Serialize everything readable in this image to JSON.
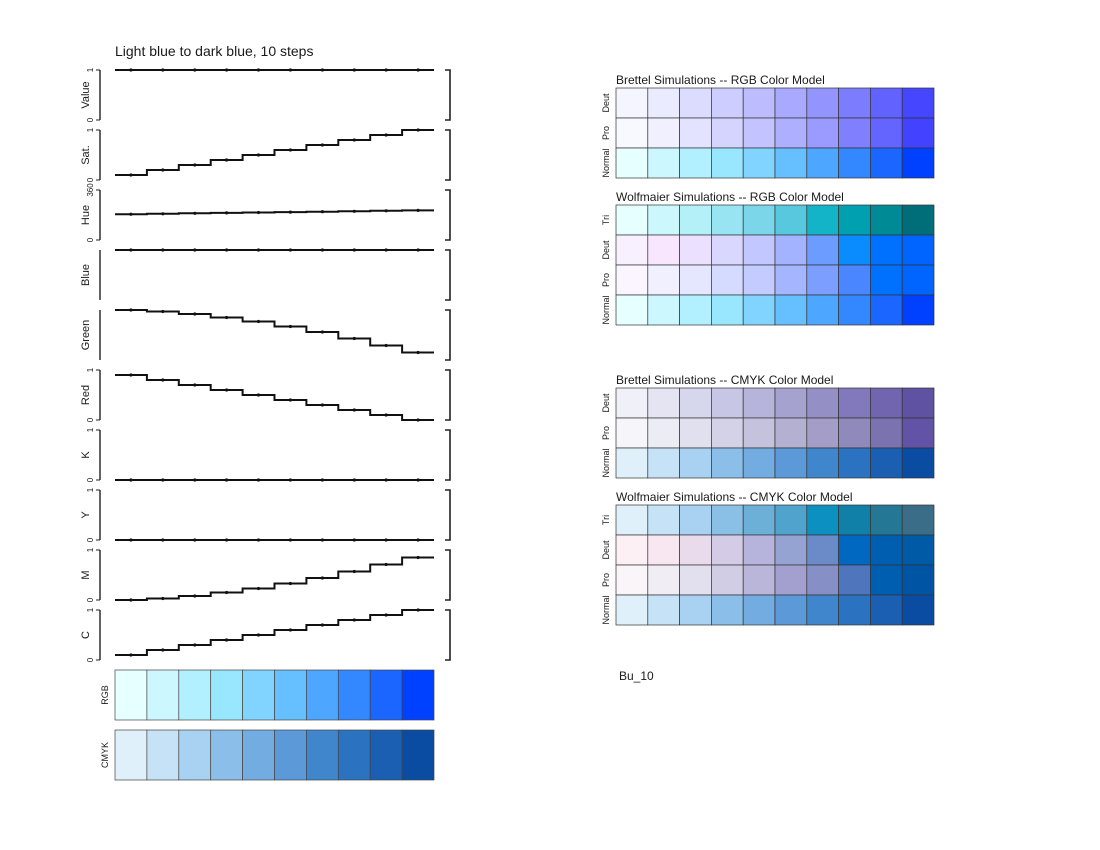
{
  "figure": {
    "title": "Light blue to dark blue, 10 steps",
    "palette_name": "Bu_10"
  },
  "chart_data": {
    "type": "step",
    "steps": 10,
    "component_panels": [
      {
        "key": "value",
        "label": "Value",
        "tick_labels": [
          "0",
          "1"
        ],
        "ylim": [
          0,
          1
        ],
        "values": [
          1,
          1,
          1,
          1,
          1,
          1,
          1,
          1,
          1,
          1
        ]
      },
      {
        "key": "sat",
        "label": "Sat.",
        "tick_labels": [
          "0",
          "1"
        ],
        "ylim": [
          0,
          1
        ],
        "values": [
          0.1,
          0.2,
          0.3,
          0.4,
          0.5,
          0.6,
          0.7,
          0.8,
          0.9,
          1.0
        ]
      },
      {
        "key": "hue",
        "label": "Hue",
        "tick_labels": [
          "0",
          "360"
        ],
        "ylim": [
          0,
          360
        ],
        "values": [
          186,
          189,
          192,
          195,
          198,
          201,
          204,
          207,
          210,
          213
        ]
      },
      {
        "key": "blue",
        "label": "Blue",
        "tick_labels": [],
        "ylim": [
          0,
          1
        ],
        "values": [
          1,
          1,
          1,
          1,
          1,
          1,
          1,
          1,
          1,
          1
        ]
      },
      {
        "key": "green",
        "label": "Green",
        "tick_labels": [],
        "ylim": [
          0,
          1
        ],
        "values": [
          1.0,
          0.97,
          0.92,
          0.85,
          0.77,
          0.67,
          0.56,
          0.43,
          0.29,
          0.15
        ]
      },
      {
        "key": "red",
        "label": "Red",
        "tick_labels": [
          "0",
          "1"
        ],
        "ylim": [
          0,
          1
        ],
        "values": [
          0.9,
          0.8,
          0.7,
          0.6,
          0.5,
          0.4,
          0.3,
          0.2,
          0.1,
          0.0
        ]
      },
      {
        "key": "k",
        "label": "K",
        "tick_labels": [
          "0",
          "1"
        ],
        "ylim": [
          0,
          1
        ],
        "values": [
          0,
          0,
          0,
          0,
          0,
          0,
          0,
          0,
          0,
          0
        ]
      },
      {
        "key": "y",
        "label": "Y",
        "tick_labels": [
          "0",
          "1"
        ],
        "ylim": [
          0,
          1
        ],
        "values": [
          0,
          0,
          0,
          0,
          0,
          0,
          0,
          0,
          0,
          0
        ]
      },
      {
        "key": "m",
        "label": "M",
        "tick_labels": [
          "0",
          "1"
        ],
        "ylim": [
          0,
          1
        ],
        "values": [
          0.0,
          0.03,
          0.08,
          0.15,
          0.23,
          0.33,
          0.44,
          0.57,
          0.71,
          0.85
        ]
      },
      {
        "key": "c",
        "label": "C",
        "tick_labels": [
          "0",
          "1"
        ],
        "ylim": [
          0,
          1
        ],
        "values": [
          0.1,
          0.2,
          0.3,
          0.4,
          0.5,
          0.6,
          0.7,
          0.8,
          0.9,
          1.0
        ]
      }
    ],
    "swatch_rows": [
      {
        "label": "RGB",
        "colors": [
          "#e6ffff",
          "#ccf7ff",
          "#b3f0ff",
          "#99e6ff",
          "#80d4ff",
          "#66bfff",
          "#4da6ff",
          "#3388ff",
          "#1a66ff",
          "#0040ff"
        ]
      },
      {
        "label": "CMYK",
        "colors": [
          "#e0f0fb",
          "#c5e2f7",
          "#a8d1f2",
          "#8bbee9",
          "#72ace0",
          "#5b99d8",
          "#3f86cc",
          "#2b73c0",
          "#1a5fb2",
          "#0b4ca3"
        ]
      }
    ],
    "simulation_groups": [
      {
        "title": "Brettel Simulations -- RGB Color Model",
        "rows": [
          {
            "label": "Deut",
            "colors": [
              "#f5f5ff",
              "#ebebff",
              "#dcdcff",
              "#cdcdff",
              "#bcbcff",
              "#a9a9ff",
              "#9494ff",
              "#7c7cff",
              "#6262ff",
              "#4646ff"
            ]
          },
          {
            "label": "Pro",
            "colors": [
              "#f8f8ff",
              "#f0f0ff",
              "#e3e3ff",
              "#d4d4ff",
              "#c3c3ff",
              "#afafff",
              "#9a9aff",
              "#8080ff",
              "#6464ff",
              "#4242ff"
            ]
          },
          {
            "label": "Normal",
            "colors": [
              "#e6ffff",
              "#ccf7ff",
              "#b3f0ff",
              "#99e6ff",
              "#80d4ff",
              "#66bfff",
              "#4da6ff",
              "#3388ff",
              "#1a66ff",
              "#0040ff"
            ]
          }
        ]
      },
      {
        "title": "Wolfmaier Simulations -- RGB Color Model",
        "rows": [
          {
            "label": "Tri",
            "colors": [
              "#e6ffff",
              "#ccf7fc",
              "#b3f0f7",
              "#99e4f2",
              "#7ad6e8",
              "#57c8de",
              "#14b4c8",
              "#00a0b0",
              "#008a96",
              "#006e78"
            ]
          },
          {
            "label": "Deut",
            "colors": [
              "#f8f0ff",
              "#f8e6ff",
              "#ebe1ff",
              "#dad7ff",
              "#c2c8ff",
              "#a4b3ff",
              "#6c9cff",
              "#0a8cff",
              "#0070ff",
              "#0064ff"
            ]
          },
          {
            "label": "Pro",
            "colors": [
              "#faf5ff",
              "#f0f0ff",
              "#e5e6ff",
              "#d5daff",
              "#c3cbff",
              "#a6b5ff",
              "#7c9fff",
              "#4a86ff",
              "#0070ff",
              "#0064ff"
            ]
          },
          {
            "label": "Normal",
            "colors": [
              "#e6ffff",
              "#ccf7ff",
              "#b3f0ff",
              "#99e6ff",
              "#80d4ff",
              "#66bfff",
              "#4da6ff",
              "#3388ff",
              "#1a66ff",
              "#0040ff"
            ]
          }
        ]
      },
      {
        "title": "Brettel Simulations -- CMYK Color Model",
        "rows": [
          {
            "label": "Deut",
            "colors": [
              "#f0f0f8",
              "#e4e4f2",
              "#d6d6ec",
              "#c7c6e4",
              "#b7b4db",
              "#a5a2d0",
              "#9490c6",
              "#8179bb",
              "#7065ae",
              "#5f52a3"
            ]
          },
          {
            "label": "Pro",
            "colors": [
              "#f5f5fa",
              "#ececf4",
              "#e1e0ee",
              "#d4d2e6",
              "#c5c2dd",
              "#b4b0d2",
              "#a39dc7",
              "#9089bb",
              "#7b73b0",
              "#6353a6"
            ]
          },
          {
            "label": "Normal",
            "colors": [
              "#e0f0fb",
              "#c5e2f7",
              "#a8d1f2",
              "#8bbee9",
              "#72ace0",
              "#5b99d8",
              "#3f86cc",
              "#2b73c0",
              "#1a5fb2",
              "#0b4ca3"
            ]
          }
        ]
      },
      {
        "title": "Wolfmaier Simulations -- CMYK Color Model",
        "rows": [
          {
            "label": "Tri",
            "colors": [
              "#e0f0fb",
              "#c5e2f7",
              "#a8d1f2",
              "#8bc0e6",
              "#6cb0d8",
              "#50a3cc",
              "#0c90c0",
              "#1180a8",
              "#247896",
              "#3a6e88"
            ]
          },
          {
            "label": "Deut",
            "colors": [
              "#fcf0f5",
              "#f8e6f0",
              "#e9dbec",
              "#d4cbe6",
              "#b6b4dc",
              "#95a3d2",
              "#6a8ac8",
              "#0068c0",
              "#005eb0",
              "#005aa6"
            ]
          },
          {
            "label": "Pro",
            "colors": [
              "#faf5f8",
              "#f0eef4",
              "#e2e0ee",
              "#d0cde4",
              "#bab6da",
              "#a3a0cf",
              "#8690c6",
              "#4f76bc",
              "#005eb0",
              "#0054a4"
            ]
          },
          {
            "label": "Normal",
            "colors": [
              "#e0f0fb",
              "#c5e2f7",
              "#a8d1f2",
              "#8bbee9",
              "#72ace0",
              "#5b99d8",
              "#3f86cc",
              "#2b73c0",
              "#1a5fb2",
              "#0b4ca3"
            ]
          }
        ]
      }
    ]
  }
}
